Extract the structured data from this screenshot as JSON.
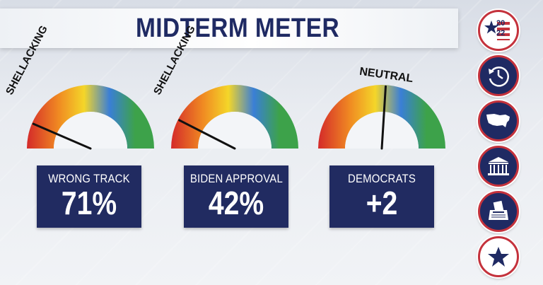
{
  "header": {
    "title": "MIDTERM METER"
  },
  "gauges": [
    {
      "label": "SHELLACKING",
      "card_label": "WRONG TRACK",
      "card_value": "71%",
      "needle_level_pct": 13
    },
    {
      "label": "SHELLACKING",
      "card_label": "BIDEN APPROVAL",
      "card_value": "42%",
      "needle_level_pct": 15
    },
    {
      "label": "NEUTRAL",
      "card_label": "DEMOCRATS",
      "card_value": "+2",
      "needle_level_pct": 52
    }
  ],
  "sidebar": {
    "logo_text_top": "20",
    "logo_text_bottom": "22",
    "icons": [
      "2022-logo-icon",
      "history-clock-icon",
      "us-map-icon",
      "capitol-building-icon",
      "ballot-box-icon",
      "star-icon"
    ]
  },
  "colors": {
    "navy": "#212b61",
    "red_ring": "#c4323c",
    "gauge_red": "#e0312a",
    "gauge_orange": "#f28a1f",
    "gauge_yellow": "#f4d629",
    "gauge_blue": "#3a7fd6",
    "gauge_green": "#3da24a"
  }
}
